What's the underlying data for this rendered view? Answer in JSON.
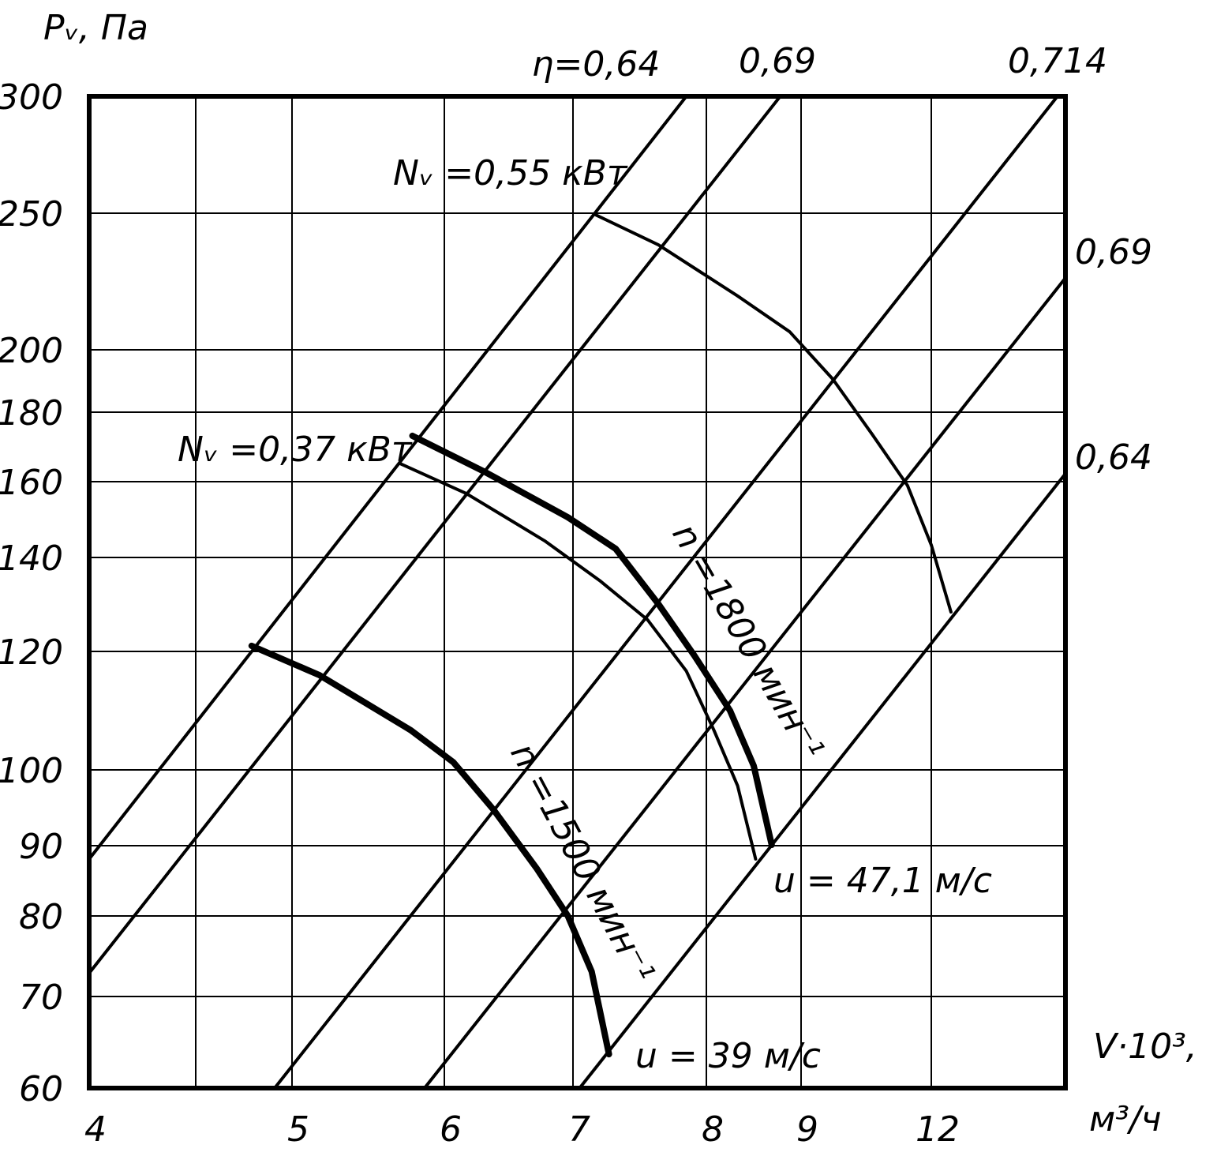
{
  "chart_data": {
    "type": "line",
    "y_label": "Pᵥ, Па",
    "x_label": [
      "V·10³,",
      "м³/ч"
    ],
    "xlim": [
      4,
      15
    ],
    "xticks": [
      4,
      {
        "value": 4.5,
        "label": null
      },
      5,
      6,
      7,
      8,
      9,
      12
    ],
    "ylim": [
      60,
      300
    ],
    "yticks": [
      60,
      70,
      80,
      90,
      100,
      120,
      140,
      160,
      180,
      200,
      250,
      300
    ],
    "grid": true,
    "color": "#000000",
    "series": [
      {
        "name": "η=0,64",
        "width": 4,
        "x": [
          4,
          7.85
        ],
        "values": [
          88.1,
          300
        ]
      },
      {
        "name": "0,69",
        "width": 4,
        "x": [
          4,
          8.78
        ],
        "values": [
          72.9,
          300
        ]
      },
      {
        "name": "0,714",
        "width": 4,
        "x": [
          4.91,
          14.82
        ],
        "values": [
          60,
          300
        ]
      },
      {
        "name": "0,69",
        "width": 4,
        "x": [
          5.87,
          15
        ],
        "values": [
          60,
          226.3
        ]
      },
      {
        "name": "0,64",
        "width": 4,
        "x": [
          7.05,
          15
        ],
        "values": [
          60,
          162.3
        ]
      },
      {
        "name": "n =1500 мин⁻¹",
        "width": 8,
        "x": [
          4.79,
          5.18,
          5.78,
          6.07,
          6.38,
          6.72,
          6.96,
          7.14,
          7.27
        ],
        "values": [
          121.2,
          116,
          106.7,
          101.3,
          94.8,
          86.7,
          80,
          73.1,
          63.7
        ]
      },
      {
        "name": "n =1800 мин⁻¹",
        "width": 8,
        "x": [
          5.79,
          6.32,
          6.96,
          7.32,
          7.64,
          7.91,
          8.25,
          8.5,
          8.69
        ],
        "values": [
          173.2,
          162.7,
          150.6,
          142.3,
          130.1,
          119.3,
          110,
          100.7,
          90.1
        ]
      },
      {
        "name": "Nᵥ =0,37 кВт",
        "width": 4,
        "x": [
          5.71,
          6.17,
          6.78,
          7.2,
          7.56,
          7.85,
          8.08,
          8.33,
          8.52
        ],
        "values": [
          165.2,
          156.9,
          144.4,
          135.1,
          126.7,
          116.7,
          106.7,
          97.9,
          88.1
        ]
      },
      {
        "name": "Nᵥ =0,55 кВт",
        "width": 4,
        "x": [
          7.17,
          7.64,
          8.33,
          8.88,
          9.73,
          10.64,
          11.45,
          12,
          12.44
        ],
        "values": [
          249.4,
          238.4,
          219.7,
          206.6,
          190.6,
          173.6,
          159,
          143.3,
          128.4
        ]
      }
    ],
    "annotations": [
      "u = 47,1 м/с",
      "u = 39 м/с"
    ]
  }
}
